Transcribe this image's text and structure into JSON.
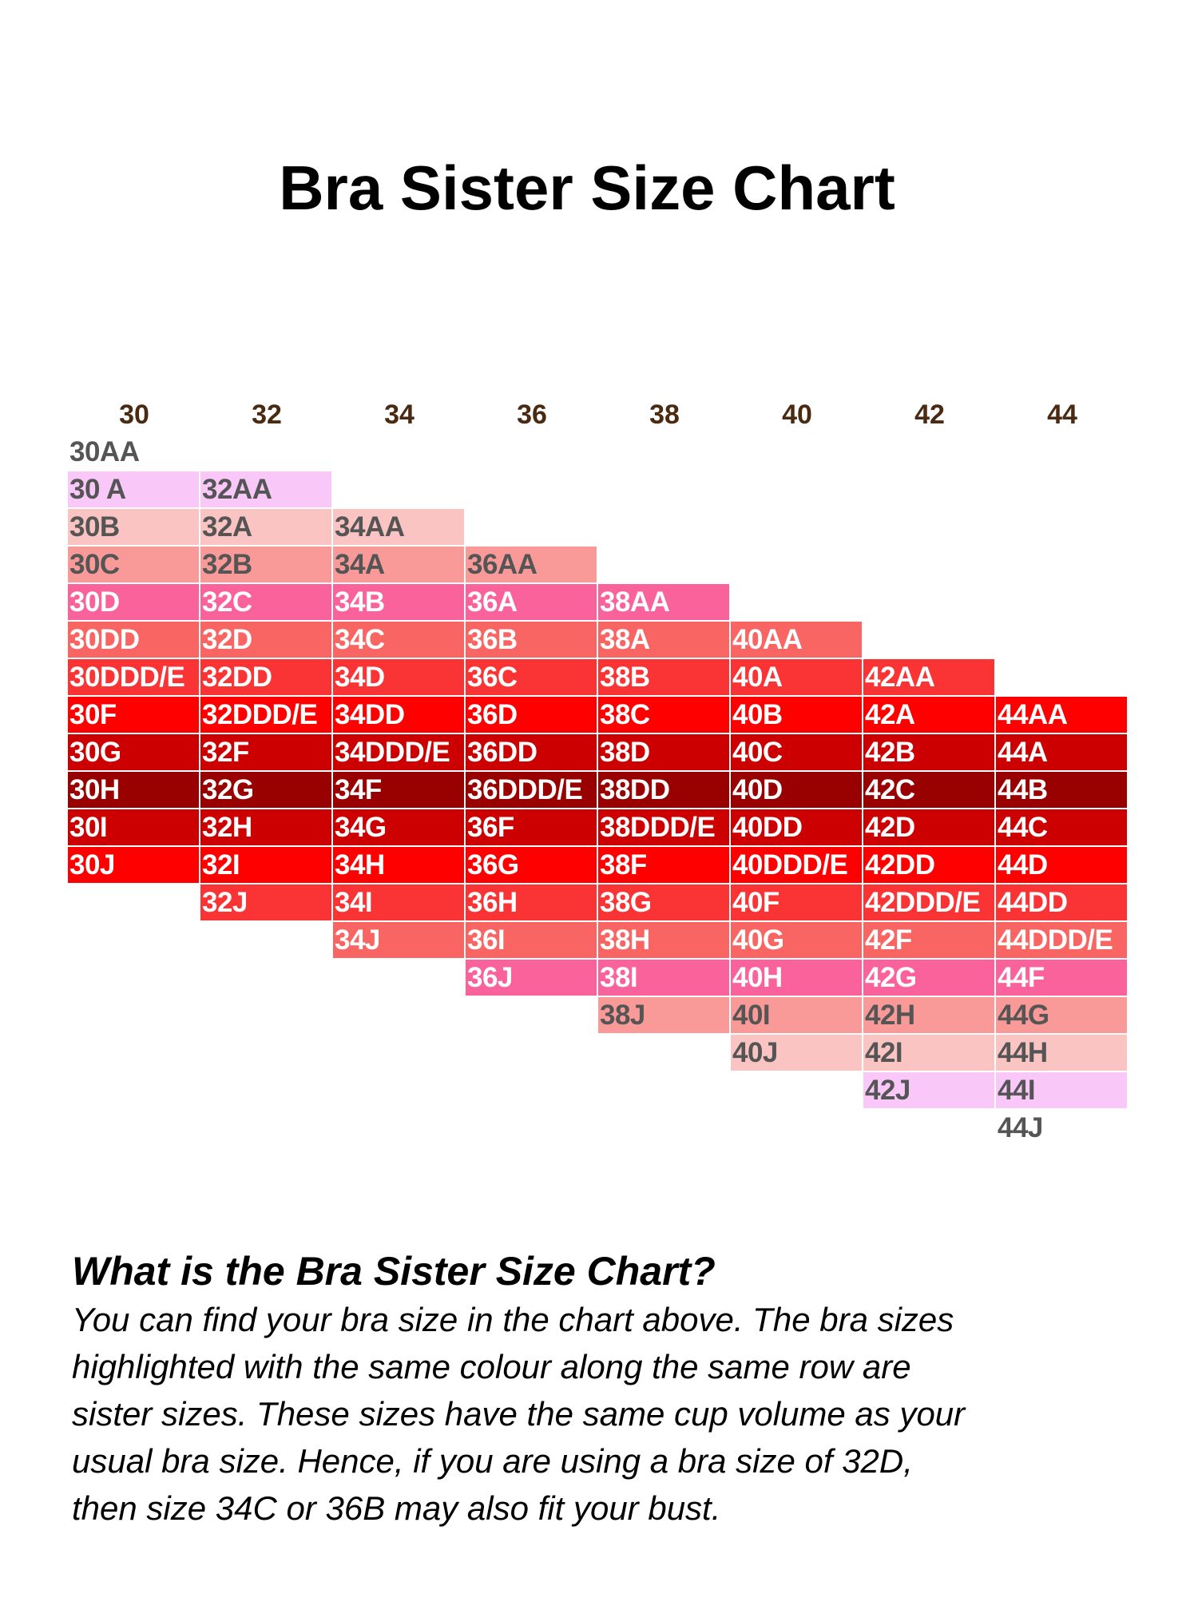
{
  "chart_data": {
    "type": "table",
    "title": "Bra Sister Size Chart",
    "band_sizes": [
      "30",
      "32",
      "34",
      "36",
      "38",
      "40",
      "42",
      "44"
    ],
    "columns": [
      [
        "30AA",
        "30 A",
        "30B",
        "30C",
        "30D",
        "30DD",
        "30DDD/E",
        "30F",
        "30G",
        "30H",
        "30I",
        "30J"
      ],
      [
        "32AA",
        "32A",
        "32B",
        "32C",
        "32D",
        "32DD",
        "32DDD/E",
        "32F",
        "32G",
        "32H",
        "32I",
        "32J"
      ],
      [
        "34AA",
        "34A",
        "34B",
        "34C",
        "34D",
        "34DD",
        "34DDD/E",
        "34F",
        "34G",
        "34H",
        "34I",
        "34J"
      ],
      [
        "36AA",
        "36A",
        "36B",
        "36C",
        "36D",
        "36DD",
        "36DDD/E",
        "36F",
        "36G",
        "36H",
        "36I",
        "36J"
      ],
      [
        "38AA",
        "38A",
        "38B",
        "38C",
        "38D",
        "38DD",
        "38DDD/E",
        "38F",
        "38G",
        "38H",
        "38I",
        "38J"
      ],
      [
        "40AA",
        "40A",
        "40B",
        "40C",
        "40D",
        "40DD",
        "40DDD/E",
        "40F",
        "40G",
        "40H",
        "40I",
        "40J"
      ],
      [
        "42AA",
        "42A",
        "42B",
        "42C",
        "42D",
        "42DD",
        "42DDD/E",
        "42F",
        "42G",
        "42H",
        "42I",
        "42J"
      ],
      [
        "44AA",
        "44A",
        "44B",
        "44C",
        "44D",
        "44DD",
        "44DDD/E",
        "44F",
        "44G",
        "44H",
        "44I",
        "44J"
      ]
    ],
    "row_colors": [
      "#ffffff",
      "#f9c8f9",
      "#f9c4c2",
      "#f99a98",
      "#f9629a",
      "#f96562",
      "#fa3434",
      "#ff0000",
      "#cc0000",
      "#990000",
      "#cc0000",
      "#ff0000",
      "#fa3434",
      "#f96562",
      "#f9629a",
      "#f99a98",
      "#f9c4c2",
      "#f9c8f9",
      "#ffffff"
    ],
    "light_text_color": "#ffffff",
    "dark_text_color": "#555555",
    "header_color": "#4a2a10"
  },
  "explanation": {
    "heading": "What is the Bra Sister Size Chart?",
    "lines": [
      "You can find your bra size in the chart above. The bra sizes",
      "highlighted with the same colour along the same row are",
      "sister sizes. These sizes have the same cup volume as your",
      "usual bra size. Hence, if you are using a bra size of 32D,",
      "then size 34C or 36B may also fit your bust."
    ]
  }
}
